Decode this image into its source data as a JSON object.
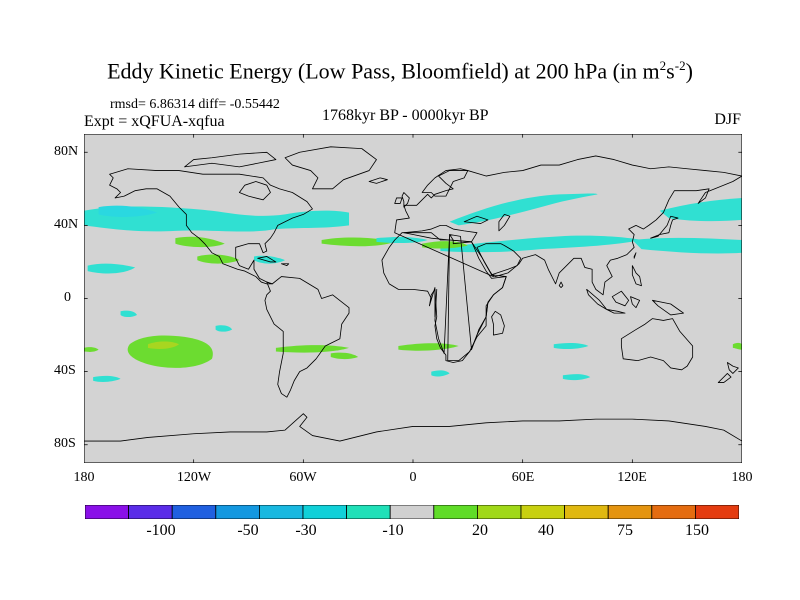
{
  "title": {
    "main": "Eddy Kinetic Energy (Low Pass, Bloomfield) at 200 hPa (in m",
    "sup1": "2",
    "mid": "s",
    "sup2": "-2",
    "close": ")"
  },
  "stats": "rmsd= 6.86314 diff= -0.55442",
  "experiment": "Expt = xQFUA-xqfua",
  "period": "1768kyr BP - 0000kyr BP",
  "season": "DJF",
  "axes": {
    "lat_labels": [
      "80N",
      "40N",
      "0",
      "40S",
      "80S"
    ],
    "lon_labels": [
      "180",
      "120W",
      "60W",
      "0",
      "60E",
      "120E",
      "180"
    ]
  },
  "colorbar": {
    "colors": [
      "#8a10e8",
      "#5a2ce8",
      "#2060e0",
      "#1498e0",
      "#18b8e0",
      "#10d0d8",
      "#20e0b8",
      "#d0d0d0",
      "#60dc28",
      "#a0d818",
      "#c8d010",
      "#e0b810",
      "#e49410",
      "#e46c10",
      "#e43c10"
    ],
    "labels": [
      "-100",
      "-50",
      "-30",
      "-10",
      "20",
      "40",
      "75",
      "150"
    ]
  },
  "colors": {
    "background": "#d3d3d3",
    "light_cyan": "#30e0d2",
    "cyan": "#2ad8e0",
    "green": "#6cdc30",
    "lime": "#a8d620"
  }
}
